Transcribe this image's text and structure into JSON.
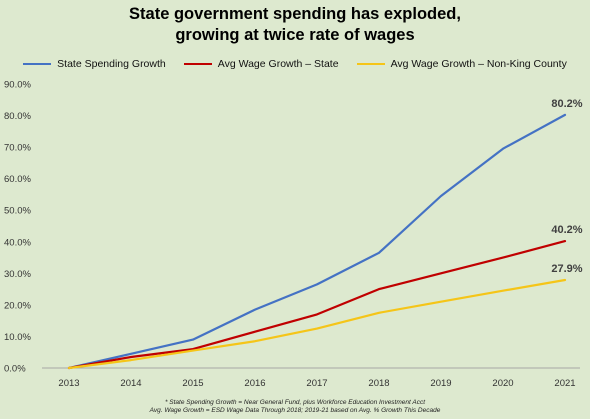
{
  "chart_data": {
    "type": "line",
    "title_line1": "State government spending has exploded,",
    "title_line2": "growing at twice rate of wages",
    "categories": [
      "2013",
      "2014",
      "2015",
      "2016",
      "2017",
      "2018",
      "2019",
      "2020",
      "2021"
    ],
    "ylim": [
      0,
      90
    ],
    "yticks": [
      "0.0%",
      "10.0%",
      "20.0%",
      "30.0%",
      "40.0%",
      "50.0%",
      "60.0%",
      "70.0%",
      "80.0%",
      "90.0%"
    ],
    "grid": false,
    "legend_position": "top",
    "series": [
      {
        "name": "State Spending Growth",
        "color": "#4472c4",
        "values": [
          0,
          4.5,
          9,
          18.5,
          26.5,
          36.5,
          54.5,
          69.5,
          80.2
        ],
        "end_label": "80.2%"
      },
      {
        "name": "Avg Wage Growth – State",
        "color": "#c00000",
        "values": [
          0,
          3.5,
          6,
          11.5,
          17,
          25,
          30,
          35,
          40.2
        ],
        "end_label": "40.2%"
      },
      {
        "name": "Avg Wage Growth – Non-King County",
        "color": "#f5c518",
        "values": [
          0,
          2.5,
          5.5,
          8.5,
          12.5,
          17.5,
          21,
          24.5,
          27.9
        ],
        "end_label": "27.9%"
      }
    ],
    "footnote_line1": "* State Spending Growth = Near General Fund, plus Workforce Education Investment Acct",
    "footnote_line2": "Avg. Wage Growth = ESD Wage Data Through 2018; 2019-21 based on Avg. % Growth This Decade"
  }
}
